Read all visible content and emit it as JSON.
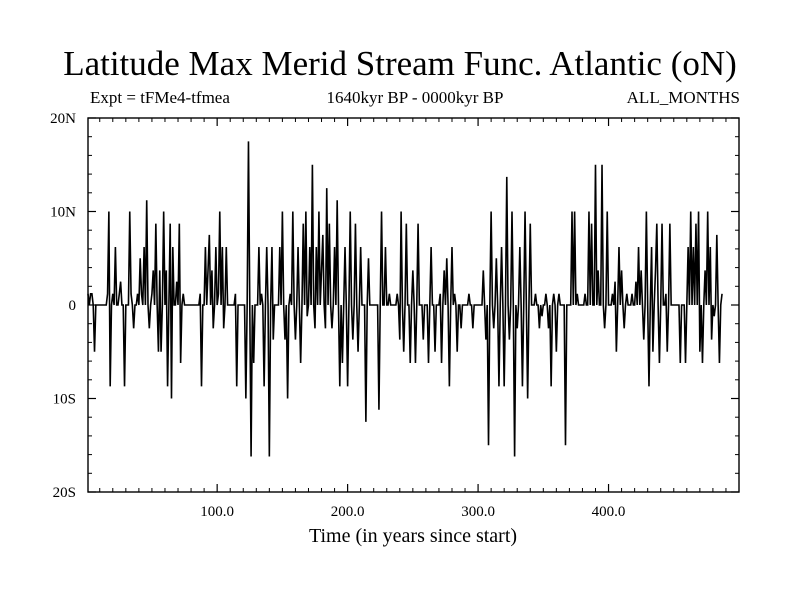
{
  "chart_data": {
    "type": "line",
    "title": "Latitude Max Merid Stream Func. Atlantic (oN)",
    "subtitle_left": "Expt = tFMe4-tfmea",
    "subtitle_center": "1640kyr BP - 0000kyr BP",
    "subtitle_right": "ALL_MONTHS",
    "xlabel": "Time (in years since start)",
    "ylabel": "",
    "xlim": [
      1,
      500
    ],
    "ylim": [
      -20,
      20
    ],
    "x_ticks": [
      100,
      200,
      300,
      400
    ],
    "x_tick_labels": [
      "100.0",
      "200.0",
      "300.0",
      "400.0"
    ],
    "y_ticks": [
      -20,
      -10,
      0,
      10,
      20
    ],
    "y_tick_labels": [
      "20S",
      "10S",
      "0",
      "10N",
      "20N"
    ],
    "grid": false,
    "legend": "none",
    "line_color": "#000000",
    "series": [
      {
        "x_start": 1,
        "x_step": 1,
        "values": [
          1.2,
          0,
          1.2,
          1.2,
          0,
          -5,
          0,
          0,
          0,
          0,
          0,
          0,
          0,
          0,
          0,
          1.2,
          10,
          -8.7,
          0,
          1.2,
          0,
          6.2,
          0,
          0,
          1.2,
          2.5,
          0,
          0,
          -8.7,
          0,
          0,
          0,
          10,
          1.2,
          0,
          -2.5,
          0,
          0,
          1.2,
          0,
          5,
          1.2,
          0,
          6.2,
          0,
          11.2,
          0,
          -2.5,
          0,
          1.2,
          3.7,
          0,
          8.7,
          0,
          -5,
          3.7,
          -5,
          0,
          10,
          0,
          3.7,
          -8.7,
          0,
          8.7,
          -10,
          6.2,
          0,
          0,
          2.5,
          0,
          8.7,
          -6.2,
          0,
          1.2,
          0,
          0,
          0,
          0,
          0,
          0,
          0,
          0,
          0,
          0,
          0,
          0,
          1.2,
          -8.7,
          0,
          0,
          6.2,
          0,
          3.7,
          7.5,
          0,
          3.7,
          -2.5,
          0,
          6.2,
          0,
          1.2,
          10,
          0,
          6.2,
          -2.5,
          0,
          6.2,
          0,
          0,
          0,
          0,
          0,
          0,
          1.2,
          -8.7,
          0,
          0,
          0,
          0,
          0,
          0,
          -10,
          0,
          17.5,
          0,
          -16.2,
          0,
          -6.2,
          0,
          0,
          0,
          6.2,
          0,
          1.2,
          0,
          -8.7,
          0,
          6.2,
          0,
          -16.2,
          0,
          6.2,
          -3.7,
          0,
          0,
          0,
          0,
          6.2,
          0,
          10,
          0,
          -3.7,
          0,
          -10,
          0,
          1.2,
          0,
          10,
          0,
          -3.7,
          0,
          6.2,
          0,
          -6.2,
          0,
          8.7,
          0,
          10,
          -1.2,
          0,
          6.2,
          0,
          15,
          0,
          -2.5,
          6.2,
          0,
          10,
          0,
          3.7,
          7.5,
          0,
          -2.5,
          12.5,
          0,
          8.7,
          0,
          -2.5,
          0,
          6.2,
          0,
          11.2,
          0,
          -8.7,
          0,
          -6.2,
          0,
          6.2,
          0,
          -8.7,
          0,
          10,
          0,
          -3.7,
          0,
          8.7,
          0,
          -5,
          0,
          6.2,
          0,
          0,
          0,
          -12.5,
          0,
          5,
          0,
          0,
          0,
          0,
          0,
          0,
          0,
          -11.2,
          0,
          10,
          0,
          0,
          6.2,
          0,
          0,
          1.2,
          0,
          0,
          0,
          0,
          0,
          1.2,
          0,
          -3.7,
          10,
          0,
          -5,
          0,
          8.7,
          0,
          0,
          -6.2,
          0,
          3.7,
          0,
          -6.2,
          0,
          8.7,
          0,
          0,
          0,
          -3.7,
          0,
          0,
          0,
          -6.2,
          0,
          6.2,
          0,
          0,
          -5,
          0,
          0,
          0,
          1.2,
          -6.2,
          0,
          3.7,
          0,
          5,
          0,
          -8.7,
          0,
          6.2,
          0,
          1.2,
          0,
          -5,
          0,
          0,
          -2.5,
          0,
          0,
          0,
          0,
          0,
          1.2,
          0,
          0,
          -2.5,
          0,
          0,
          0,
          0,
          0,
          0,
          0,
          3.7,
          0,
          -3.7,
          0,
          -15,
          0,
          10,
          0,
          -2.5,
          0,
          5,
          0,
          -8.7,
          0,
          6.2,
          0,
          -8.7,
          0,
          13.7,
          0,
          -3.7,
          0,
          10,
          0,
          -16.2,
          0,
          -2.5,
          0,
          6.2,
          0,
          -8.7,
          0,
          10,
          0,
          -10,
          0,
          8.7,
          0,
          0,
          0,
          1.2,
          0,
          0,
          -2.5,
          0,
          -1.2,
          0,
          0,
          1.2,
          0,
          -2.5,
          0,
          -8.7,
          0,
          1.2,
          0,
          -5,
          0,
          1.2,
          0,
          0,
          0,
          0,
          -15,
          0,
          0,
          0,
          0,
          10,
          0,
          10,
          0,
          1.2,
          0,
          0,
          0,
          0,
          0,
          1.2,
          0,
          0,
          10,
          0,
          8.7,
          0,
          0,
          15,
          0,
          3.7,
          0,
          0,
          15,
          0,
          -2.5,
          0,
          10,
          0,
          0,
          0,
          1.2,
          0,
          2.5,
          -5,
          0,
          6.2,
          0,
          3.7,
          0,
          -2.5,
          0,
          1.2,
          0,
          0,
          0,
          1.2,
          0,
          0,
          2.5,
          0,
          6.2,
          0,
          3.7,
          0,
          -3.7,
          0,
          10,
          0,
          -8.7,
          0,
          6.2,
          -5,
          0,
          3.7,
          8.7,
          0,
          -6.2,
          0,
          8.7,
          0,
          0,
          1.2,
          -5,
          0,
          8.7,
          0,
          0,
          0,
          0,
          0,
          0,
          0,
          -6.2,
          0,
          0,
          0,
          -6.2,
          0,
          6.2,
          0,
          10,
          0,
          6.2,
          0,
          8.7,
          0,
          10,
          -5,
          0,
          -6.2,
          0,
          3.7,
          0,
          10,
          0,
          6.2,
          -3.7,
          0,
          -1.2,
          0,
          7.5,
          0,
          -6.2,
          0,
          1.2
        ]
      }
    ]
  }
}
